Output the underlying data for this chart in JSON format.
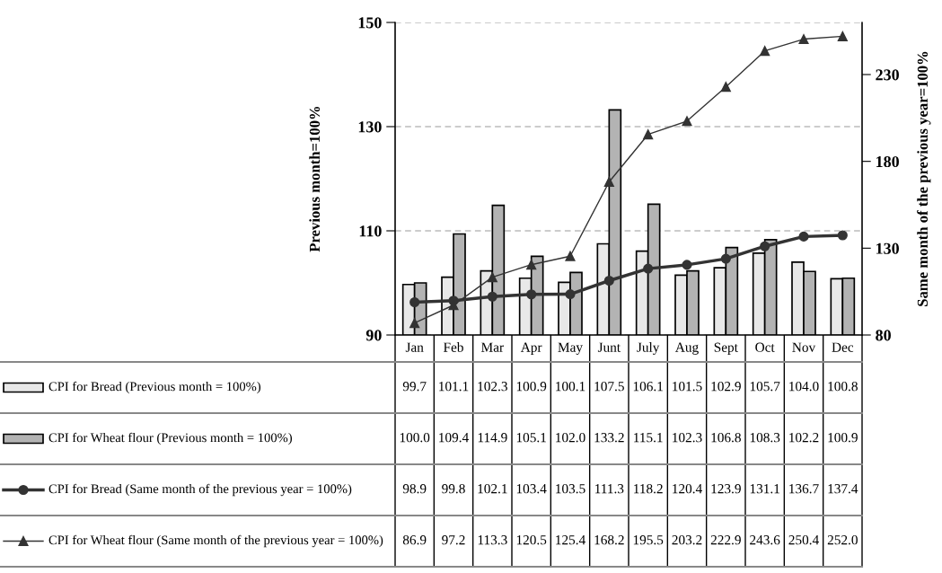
{
  "chart_data": {
    "type": "bar",
    "ylabel": "Previous month=100%",
    "y2label": "Same month of the previous year=100%",
    "categories": [
      "Jan",
      "Feb",
      "Mar",
      "Apr",
      "May",
      "Junt",
      "July",
      "Aug",
      "Sept",
      "Oct",
      "Nov",
      "Dec"
    ],
    "series": [
      {
        "name": "CPI for Bread (Previous month = 100%)",
        "color": "#e8e8e8",
        "values": [
          99.7,
          101.1,
          102.3,
          100.9,
          100.1,
          107.5,
          106.1,
          101.5,
          102.9,
          105.7,
          104.0,
          100.8
        ],
        "value_labels": [
          "99.7",
          "101.1",
          "102.3",
          "100.9",
          "100.1",
          "107.5",
          "106.1",
          "101.5",
          "102.9",
          "105.7",
          "104.0",
          "100.8"
        ]
      },
      {
        "name": "CPI for Wheat flour (Previous month = 100%)",
        "color": "#b3b3b3",
        "values": [
          100.0,
          109.4,
          114.9,
          105.1,
          102.0,
          133.2,
          115.1,
          102.3,
          106.8,
          108.3,
          102.2,
          100.9
        ],
        "value_labels": [
          "100.0",
          "109.4",
          "114.9",
          "105.1",
          "102.0",
          "133.2",
          "115.1",
          "102.3",
          "106.8",
          "108.3",
          "102.2",
          "100.9"
        ]
      },
      {
        "name": "CPI for Bread (Same month of the previous year = 100%)",
        "type": "line",
        "axis": "y2",
        "marker": "circle",
        "color": "#333333",
        "values": [
          98.9,
          99.8,
          102.1,
          103.4,
          103.5,
          111.3,
          118.2,
          120.4,
          123.9,
          131.1,
          136.7,
          137.4
        ],
        "value_labels": [
          "98.9",
          "99.8",
          "102.1",
          "103.4",
          "103.5",
          "111.3",
          "118.2",
          "120.4",
          "123.9",
          "131.1",
          "136.7",
          "137.4"
        ]
      },
      {
        "name": "CPI for Wheat flour (Same month of the previous year = 100%)",
        "type": "line",
        "axis": "y2",
        "marker": "triangle",
        "color": "#333333",
        "values": [
          86.9,
          97.2,
          113.3,
          120.5,
          125.4,
          168.2,
          195.5,
          203.2,
          222.9,
          243.6,
          250.4,
          252.0
        ],
        "value_labels": [
          "86.9",
          "97.2",
          "113.3",
          "120.5",
          "125.4",
          "168.2",
          "195.5",
          "203.2",
          "222.9",
          "243.6",
          "250.4",
          "252.0"
        ]
      }
    ],
    "ylim": [
      90,
      150
    ],
    "yticks": [
      90,
      110,
      130,
      150
    ],
    "y2lim": [
      80,
      260
    ],
    "y2ticks": [
      80,
      130,
      180,
      230
    ],
    "grid": "y",
    "legend": "bottom"
  }
}
